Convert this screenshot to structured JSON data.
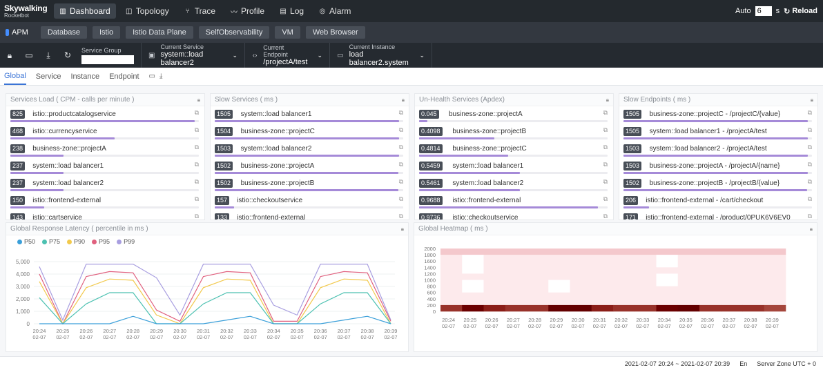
{
  "brand": {
    "name": "Skywalking",
    "subtitle": "Rocketbot"
  },
  "nav": [
    {
      "label": "Dashboard",
      "icon": "dashboard-icon",
      "glyph": "▥",
      "active": true
    },
    {
      "label": "Topology",
      "icon": "topology-icon",
      "glyph": "◫",
      "active": false
    },
    {
      "label": "Trace",
      "icon": "trace-icon",
      "glyph": "⑂",
      "active": false
    },
    {
      "label": "Profile",
      "icon": "profile-icon",
      "glyph": "〰",
      "active": false
    },
    {
      "label": "Log",
      "icon": "log-icon",
      "glyph": "▤",
      "active": false
    },
    {
      "label": "Alarm",
      "icon": "alarm-icon",
      "glyph": "◎",
      "active": false
    }
  ],
  "auto": {
    "label": "Auto",
    "value": "6",
    "unit": "s",
    "reload_label": "Reload"
  },
  "layers": [
    {
      "label": "APM",
      "active": true
    },
    {
      "label": "Database",
      "active": false
    },
    {
      "label": "Istio",
      "active": false
    },
    {
      "label": "Istio Data Plane",
      "active": false
    },
    {
      "label": "SelfObservability",
      "active": false
    },
    {
      "label": "VM",
      "active": false
    },
    {
      "label": "Web Browser",
      "active": false
    }
  ],
  "selectors": {
    "service_group": {
      "label": "Service Group",
      "value": ""
    },
    "service": {
      "label": "Current Service",
      "value": "system::load balancer2"
    },
    "endpoint": {
      "label": "Current Endpoint",
      "value": "/projectA/test"
    },
    "instance": {
      "label": "Current Instance",
      "value": "load balancer2.system"
    }
  },
  "dash_tabs": [
    {
      "label": "Global",
      "active": true
    },
    {
      "label": "Service",
      "active": false
    },
    {
      "label": "Instance",
      "active": false
    },
    {
      "label": "Endpoint",
      "active": false
    }
  ],
  "cards": [
    {
      "title": "Services Load ( CPM - calls per minute )",
      "max": 825,
      "rows": [
        {
          "value": "825",
          "name": "istio::productcatalogservice",
          "num": 825
        },
        {
          "value": "468",
          "name": "istio::currencyservice",
          "num": 468
        },
        {
          "value": "238",
          "name": "business-zone::projectA",
          "num": 238
        },
        {
          "value": "237",
          "name": "system::load balancer1",
          "num": 237
        },
        {
          "value": "237",
          "name": "system::load balancer2",
          "num": 237
        },
        {
          "value": "150",
          "name": "istio::frontend-external",
          "num": 150
        },
        {
          "value": "143",
          "name": "istio::cartservice",
          "num": 143
        }
      ]
    },
    {
      "title": "Slow Services ( ms )",
      "max": 1505,
      "rows": [
        {
          "value": "1505",
          "name": "system::load balancer1",
          "num": 1505
        },
        {
          "value": "1504",
          "name": "business-zone::projectC",
          "num": 1504
        },
        {
          "value": "1503",
          "name": "system::load balancer2",
          "num": 1503
        },
        {
          "value": "1502",
          "name": "business-zone::projectA",
          "num": 1502
        },
        {
          "value": "1502",
          "name": "business-zone::projectB",
          "num": 1502
        },
        {
          "value": "157",
          "name": "istio::checkoutservice",
          "num": 157
        },
        {
          "value": "133",
          "name": "istio::frontend-external",
          "num": 133
        }
      ]
    },
    {
      "title": "Un-Health Services (Apdex)",
      "max": 1,
      "rows": [
        {
          "value": "0.045",
          "name": "business-zone::projectA",
          "num": 0.045
        },
        {
          "value": "0.4098",
          "name": "business-zone::projectB",
          "num": 0.4098
        },
        {
          "value": "0.4814",
          "name": "business-zone::projectC",
          "num": 0.4814
        },
        {
          "value": "0.5459",
          "name": "system::load balancer1",
          "num": 0.5459
        },
        {
          "value": "0.5461",
          "name": "system::load balancer2",
          "num": 0.5461
        },
        {
          "value": "0.9688",
          "name": "istio::frontend-external",
          "num": 0.9688
        },
        {
          "value": "0.9736",
          "name": "istio::checkoutservice",
          "num": 0.9736
        }
      ]
    },
    {
      "title": "Slow Endpoints ( ms )",
      "max": 1505,
      "rows": [
        {
          "value": "1505",
          "name": "business-zone::projectC - /projectC/{value}",
          "num": 1505
        },
        {
          "value": "1505",
          "name": "system::load balancer1 - /projectA/test",
          "num": 1505
        },
        {
          "value": "1503",
          "name": "system::load balancer2 - /projectA/test",
          "num": 1503
        },
        {
          "value": "1503",
          "name": "business-zone::projectA - /projectA/{name}",
          "num": 1503
        },
        {
          "value": "1502",
          "name": "business-zone::projectB - /projectB/{value}",
          "num": 1502
        },
        {
          "value": "206",
          "name": "istio::frontend-external - /cart/checkout",
          "num": 206
        },
        {
          "value": "171",
          "name": "istio::frontend-external - /product/0PUK6V6EV0",
          "num": 171
        }
      ]
    }
  ],
  "latency": {
    "title": "Global Response Latency ( percentile in ms )",
    "legend": [
      {
        "name": "P50",
        "color": "#3a9fd9"
      },
      {
        "name": "P75",
        "color": "#4cc1b1"
      },
      {
        "name": "P90",
        "color": "#f2c94c"
      },
      {
        "name": "P95",
        "color": "#e0607e"
      },
      {
        "name": "P99",
        "color": "#a89ee0"
      }
    ],
    "y_ticks": [
      "5,000",
      "4,000",
      "3,000",
      "2,000",
      "1,000",
      "0"
    ]
  },
  "heatmap": {
    "title": "Global Heatmap ( ms )",
    "y_ticks": [
      "2000",
      "1800",
      "1600",
      "1400",
      "1200",
      "1000",
      "800",
      "600",
      "400",
      "200",
      "0"
    ]
  },
  "chart_data": [
    {
      "type": "line",
      "title": "Global Response Latency ( percentile in ms )",
      "x": [
        "20:24",
        "20:25",
        "20:26",
        "20:27",
        "20:28",
        "20:29",
        "20:30",
        "20:31",
        "20:32",
        "20:33",
        "20:34",
        "20:35",
        "20:36",
        "20:37",
        "20:38",
        "20:39"
      ],
      "x_sub": "02-07",
      "ylim": [
        0,
        5000
      ],
      "series": [
        {
          "name": "P50",
          "color": "#3a9fd9",
          "values": [
            0,
            0,
            0,
            0,
            600,
            0,
            0,
            0,
            300,
            600,
            0,
            0,
            0,
            300,
            600,
            0
          ]
        },
        {
          "name": "P75",
          "color": "#4cc1b1",
          "values": [
            2100,
            0,
            1600,
            2500,
            2500,
            0,
            0,
            1600,
            2500,
            2500,
            0,
            0,
            1600,
            2500,
            2500,
            0
          ]
        },
        {
          "name": "P90",
          "color": "#f2c94c",
          "values": [
            3400,
            0,
            2900,
            3600,
            3500,
            700,
            0,
            2900,
            3600,
            3500,
            0,
            0,
            2900,
            3600,
            3500,
            0
          ]
        },
        {
          "name": "P95",
          "color": "#e0607e",
          "values": [
            4000,
            0,
            3800,
            4200,
            4100,
            1100,
            200,
            3800,
            4200,
            4100,
            200,
            200,
            3800,
            4200,
            4100,
            200
          ]
        },
        {
          "name": "P99",
          "color": "#a89ee0",
          "values": [
            4600,
            300,
            4800,
            4800,
            4800,
            3700,
            700,
            4800,
            4800,
            4800,
            1500,
            700,
            4800,
            4800,
            4800,
            300
          ]
        }
      ]
    },
    {
      "type": "heatmap",
      "title": "Global Heatmap ( ms )",
      "x": [
        "20:24",
        "20:25",
        "20:26",
        "20:27",
        "20:28",
        "20:29",
        "20:30",
        "20:31",
        "20:32",
        "20:33",
        "20:34",
        "20:35",
        "20:36",
        "20:37",
        "20:38",
        "20:39"
      ],
      "x_sub": "02-07",
      "y": [
        "0",
        "200",
        "400",
        "600",
        "800",
        "1000",
        "1200",
        "1400",
        "1600",
        "1800",
        "2000"
      ],
      "bottom_row_intensity": [
        0.6,
        0.95,
        0.7,
        0.6,
        0.6,
        1.0,
        1.0,
        0.7,
        0.6,
        0.6,
        0.95,
        1.0,
        0.6,
        0.6,
        0.6,
        0.5
      ],
      "top_row_intensity": [
        0.3,
        0.3,
        0.3,
        0.3,
        0.3,
        0.3,
        0.3,
        0.3,
        0.3,
        0.3,
        0.3,
        0.3,
        0.3,
        0.3,
        0.3,
        0.3
      ]
    }
  ],
  "footer": {
    "range": "2021-02-07 20:24 ~ 2021-02-07 20:39",
    "lang": "En",
    "zone": "Server Zone UTC + 0"
  }
}
